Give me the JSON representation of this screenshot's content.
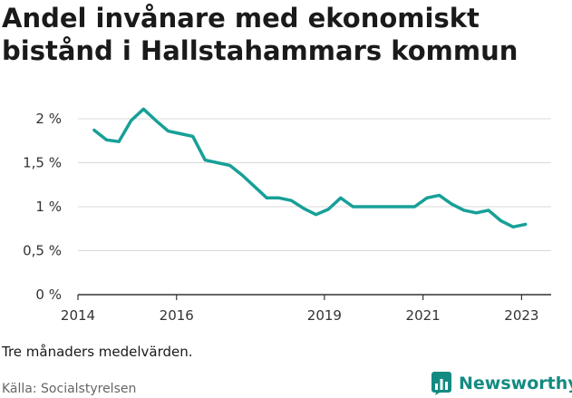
{
  "title": "Andel invånare med ekonomiskt bistånd i Hallstahammars kommun",
  "note": "Tre månaders medelvärden.",
  "source": "Källa: Socialstyrelsen",
  "brand": {
    "name": "Newsworthy",
    "icon": "bar-chart-logo-icon",
    "color": "#148b82"
  },
  "chart_data": {
    "type": "line",
    "title": "Andel invånare med ekonomiskt bistånd i Hallstahammars kommun",
    "xlabel": "",
    "ylabel": "",
    "xlim": [
      2014,
      2023.6
    ],
    "ylim": [
      0,
      2
    ],
    "grid": true,
    "color": "#17a097",
    "x_ticks": [
      {
        "value": 2014,
        "label": "2014"
      },
      {
        "value": 2016,
        "label": "2016"
      },
      {
        "value": 2019,
        "label": "2019"
      },
      {
        "value": 2021,
        "label": "2021"
      },
      {
        "value": 2023,
        "label": "2023"
      }
    ],
    "y_ticks": [
      {
        "value": 0,
        "label": "0 %"
      },
      {
        "value": 0.5,
        "label": "0,5 %"
      },
      {
        "value": 1,
        "label": "1 %"
      },
      {
        "value": 1.5,
        "label": "1,5 %"
      },
      {
        "value": 2,
        "label": "2 %"
      }
    ],
    "series": [
      {
        "x": [
          2014.33,
          2014.58,
          2014.83,
          2015.08,
          2015.33,
          2015.58,
          2015.83,
          2016.08,
          2016.33,
          2016.58,
          2016.83,
          2017.08,
          2017.33,
          2017.58,
          2017.83,
          2018.08,
          2018.33,
          2018.58,
          2018.83,
          2019.08,
          2019.33,
          2019.58,
          2019.83,
          2020.08,
          2020.33,
          2020.58,
          2020.83,
          2021.08,
          2021.33,
          2021.58,
          2021.83,
          2022.08,
          2022.33,
          2022.58,
          2022.83,
          2023.08
        ],
        "values": [
          1.87,
          1.76,
          1.74,
          1.98,
          2.11,
          1.98,
          1.86,
          1.83,
          1.8,
          1.53,
          1.5,
          1.47,
          1.36,
          1.23,
          1.1,
          1.1,
          1.07,
          0.98,
          0.91,
          0.97,
          1.1,
          1.0,
          1.0,
          1.0,
          1.0,
          1.0,
          1.0,
          1.1,
          1.13,
          1.03,
          0.96,
          0.93,
          0.96,
          0.84,
          0.77,
          0.8
        ]
      }
    ]
  }
}
